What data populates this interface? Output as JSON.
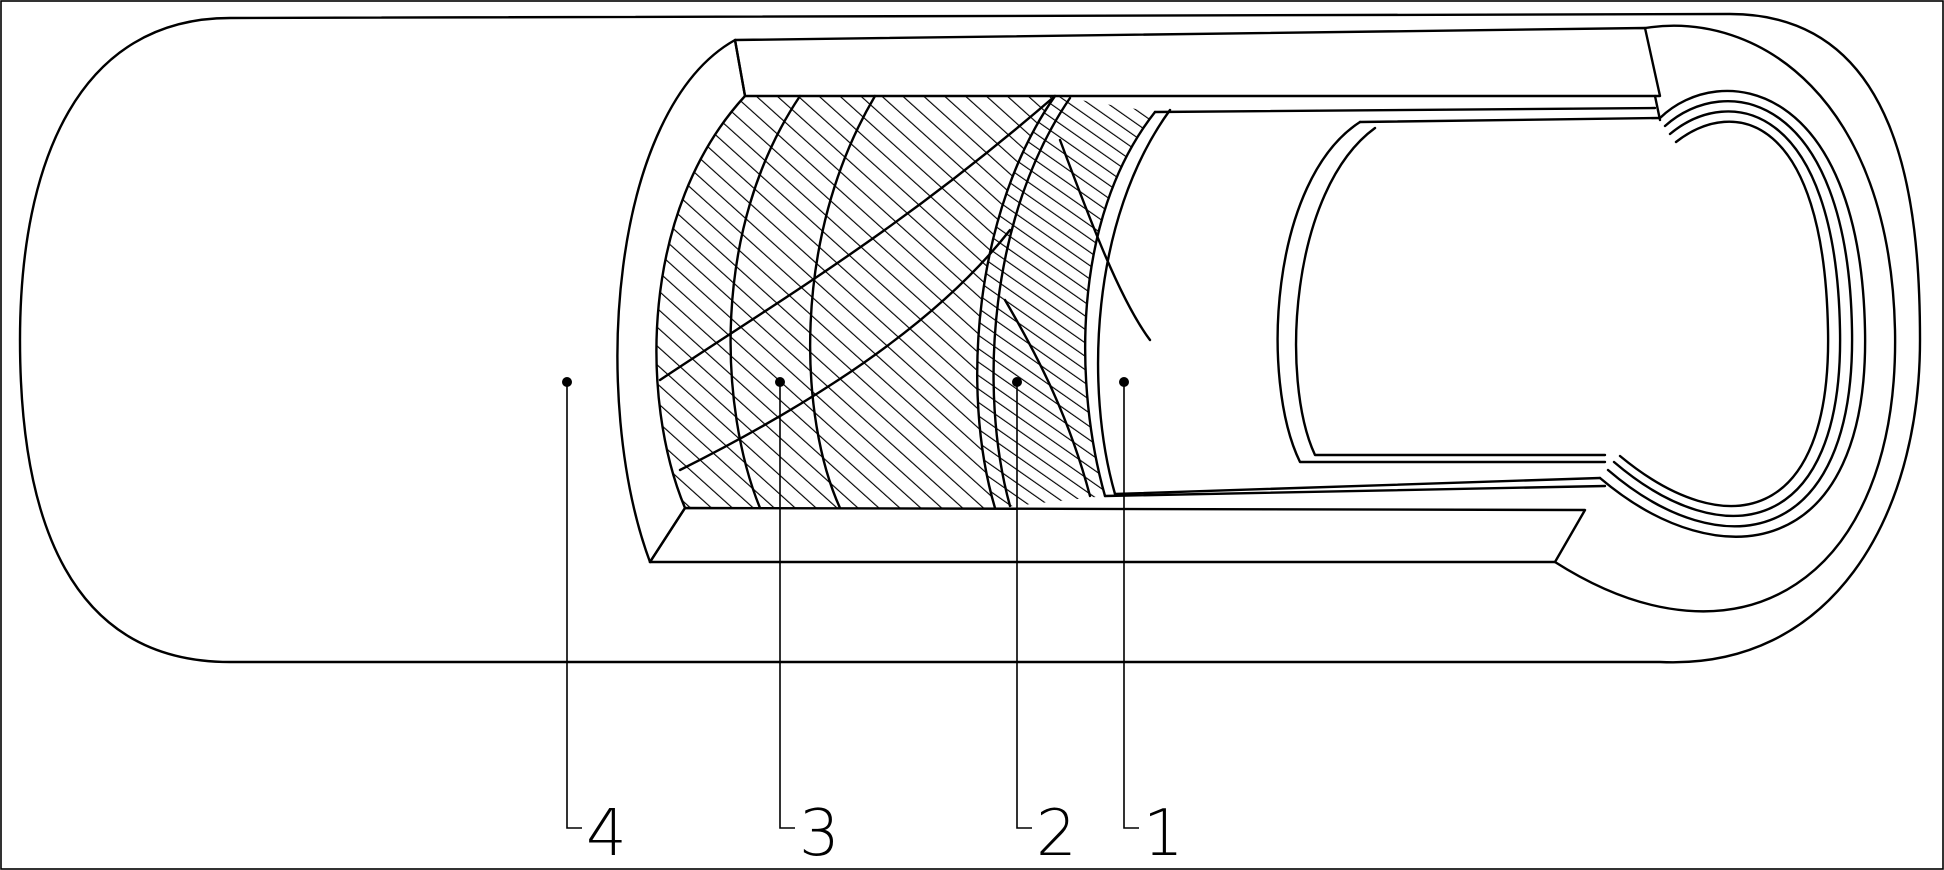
{
  "callouts": [
    {
      "id": "1",
      "label": "1"
    },
    {
      "id": "2",
      "label": "2"
    },
    {
      "id": "3",
      "label": "3"
    },
    {
      "id": "4",
      "label": "4"
    }
  ],
  "colors": {
    "ink": "#000000",
    "paper": "#ffffff"
  }
}
